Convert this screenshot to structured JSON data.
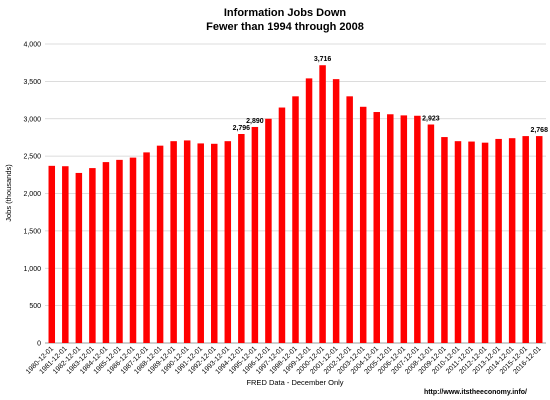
{
  "chart_data": {
    "type": "bar",
    "title": "Information Jobs Down",
    "subtitle": "Fewer than 1994 through 2008",
    "xlabel": "FRED Data - December Only",
    "ylabel": "Jobs (thousands)",
    "ylim": [
      0,
      4000
    ],
    "yticks": [
      "0",
      "500",
      "1,000",
      "1,500",
      "2,000",
      "2,500",
      "3,000",
      "3,500",
      "4,000"
    ],
    "grid": true,
    "bar_color": "#ff0000",
    "categories": [
      "1980-12-01",
      "1981-12-01",
      "1982-12-01",
      "1983-12-01",
      "1984-12-01",
      "1985-12-01",
      "1986-12-01",
      "1987-12-01",
      "1988-12-01",
      "1989-12-01",
      "1990-12-01",
      "1991-12-01",
      "1992-12-01",
      "1993-12-01",
      "1994-12-01",
      "1995-12-01",
      "1996-12-01",
      "1997-12-01",
      "1998-12-01",
      "1999-12-01",
      "2000-12-01",
      "2001-12-01",
      "2002-12-01",
      "2003-12-01",
      "2004-12-01",
      "2005-12-01",
      "2006-12-01",
      "2007-12-01",
      "2008-12-01",
      "2009-12-01",
      "2010-12-01",
      "2011-12-01",
      "2012-12-01",
      "2013-12-01",
      "2014-12-01",
      "2015-12-01",
      "2016-12-01"
    ],
    "values": [
      2370,
      2365,
      2275,
      2340,
      2420,
      2450,
      2480,
      2550,
      2640,
      2700,
      2710,
      2670,
      2665,
      2700,
      2796,
      2890,
      3000,
      3150,
      3300,
      3540,
      3716,
      3530,
      3300,
      3160,
      3090,
      3060,
      3045,
      3040,
      2923,
      2755,
      2700,
      2695,
      2680,
      2730,
      2740,
      2768,
      2768
    ],
    "data_labels": [
      {
        "index": 14,
        "text": "2,796"
      },
      {
        "index": 15,
        "text": "2,890"
      },
      {
        "index": 20,
        "text": "3,716"
      },
      {
        "index": 28,
        "text": "2,923"
      },
      {
        "index": 36,
        "text": "2,768"
      }
    ]
  },
  "footer": {
    "source_url": "http://www.itstheeconomy.info/"
  }
}
